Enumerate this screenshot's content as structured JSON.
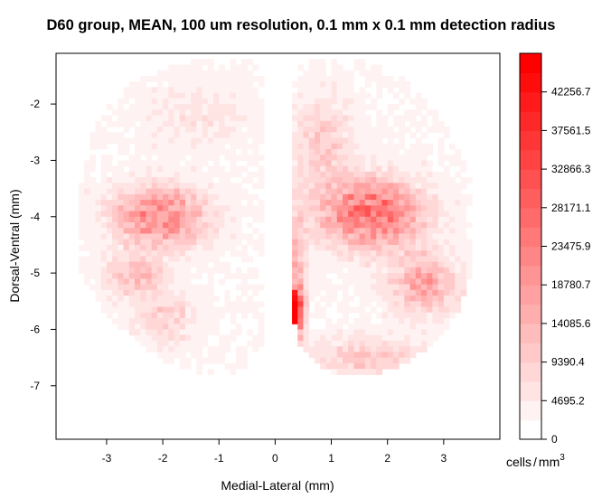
{
  "chart_data": {
    "type": "heatmap",
    "title": "D60 group, MEAN, 100 um resolution, 0.1 mm x 0.1 mm detection radius",
    "xlabel": "Medial-Lateral (mm)",
    "ylabel": "Dorsal-Ventral (mm)",
    "xlim": [
      -3.9,
      4.0
    ],
    "ylim": [
      -7.95,
      -1.1
    ],
    "x_ticks": [
      -3,
      -2,
      -1,
      0,
      1,
      2,
      3
    ],
    "x_tick_labels": [
      "-3",
      "-2",
      "-1",
      "0",
      "1",
      "2",
      "3"
    ],
    "y_ticks": [
      -2,
      -3,
      -4,
      -5,
      -6,
      -7
    ],
    "y_tick_labels": [
      "-2",
      "-3",
      "-4",
      "-5",
      "-6",
      "-7"
    ],
    "grid_step_mm": 0.1,
    "colorscale": {
      "label_prefix": "cells",
      "label_unit": "mm",
      "label_exponent": "3",
      "min": 0,
      "max": 46952,
      "low_color": "#ffffff",
      "high_color": "#ff0000",
      "levels": 20,
      "ticks": [
        0,
        4695.2,
        9390.4,
        14085.6,
        18780.7,
        23475.9,
        28171.1,
        32866.3,
        37561.5,
        42256.7
      ],
      "tick_labels": [
        "0",
        "4695.2",
        "9390.4",
        "14085.6",
        "18780.7",
        "23475.9",
        "28171.1",
        "32866.3",
        "37561.5",
        "42256.7"
      ]
    },
    "regions": {
      "section_outline_left": {
        "top": [
          [
            -3.5,
            -3.2
          ],
          [
            -3.3,
            -2.6
          ],
          [
            -3.0,
            -2.1
          ],
          [
            -2.6,
            -1.65
          ],
          [
            -2.1,
            -1.4
          ],
          [
            -1.5,
            -1.25
          ],
          [
            -0.9,
            -1.15
          ],
          [
            -0.4,
            -1.2
          ],
          [
            -0.15,
            -1.4
          ]
        ],
        "bottom": [
          [
            -3.5,
            -3.2
          ],
          [
            -3.65,
            -4.1
          ],
          [
            -3.5,
            -4.9
          ],
          [
            -3.1,
            -5.6
          ],
          [
            -2.7,
            -6.0
          ],
          [
            -2.3,
            -6.35
          ],
          [
            -1.8,
            -6.65
          ],
          [
            -1.2,
            -6.85
          ],
          [
            -0.6,
            -6.75
          ],
          [
            -0.25,
            -6.3
          ],
          [
            -0.15,
            -5.9
          ]
        ]
      },
      "section_outline_right": {
        "top": [
          [
            0.3,
            -1.4
          ],
          [
            0.7,
            -1.2
          ],
          [
            1.3,
            -1.15
          ],
          [
            2.0,
            -1.35
          ],
          [
            2.5,
            -1.7
          ],
          [
            3.0,
            -2.3
          ],
          [
            3.3,
            -2.9
          ],
          [
            3.55,
            -3.5
          ]
        ],
        "bottom": [
          [
            0.3,
            -5.5
          ],
          [
            0.4,
            -6.2
          ],
          [
            0.7,
            -6.6
          ],
          [
            1.2,
            -6.85
          ],
          [
            1.8,
            -6.8
          ],
          [
            2.4,
            -6.55
          ],
          [
            2.9,
            -6.2
          ],
          [
            3.3,
            -5.6
          ],
          [
            3.5,
            -4.9
          ],
          [
            3.6,
            -4.2
          ],
          [
            3.55,
            -3.5
          ]
        ]
      },
      "midline_gap": {
        "x_from": -0.08,
        "x_to": 0.22,
        "y_from": -1.15,
        "y_to": -6.0
      },
      "basal_density": 1600,
      "hotspots": [
        {
          "label": "left mid-lateral cluster",
          "x": -2.05,
          "y": -4.0,
          "sx": 0.55,
          "sy": 0.35,
          "peak": 21000
        },
        {
          "label": "left ventral band",
          "x": -2.5,
          "y": -5.05,
          "sx": 0.35,
          "sy": 0.25,
          "peak": 11000
        },
        {
          "label": "left ventromedial band",
          "x": -1.95,
          "y": -5.8,
          "sx": 0.35,
          "sy": 0.3,
          "peak": 7500
        },
        {
          "label": "left dorsal area",
          "x": -1.4,
          "y": -2.2,
          "sx": 0.6,
          "sy": 0.4,
          "peak": 3500
        },
        {
          "label": "right mid-lateral cluster",
          "x": 1.7,
          "y": -3.95,
          "sx": 0.6,
          "sy": 0.4,
          "peak": 27000
        },
        {
          "label": "right dorsal area",
          "x": 0.85,
          "y": -2.7,
          "sx": 0.35,
          "sy": 0.5,
          "peak": 8500
        },
        {
          "label": "right ventral band",
          "x": 2.65,
          "y": -5.2,
          "sx": 0.4,
          "sy": 0.35,
          "peak": 15000
        },
        {
          "label": "right ventromedial band",
          "x": 1.6,
          "y": -6.5,
          "sx": 0.7,
          "sy": 0.22,
          "peak": 9000
        },
        {
          "label": "right medial wall",
          "x": 0.35,
          "y": -5.7,
          "sx": 0.09,
          "sy": 0.3,
          "peak": 47000
        },
        {
          "label": "right medial column",
          "x": 0.4,
          "y": -4.8,
          "sx": 0.1,
          "sy": 0.7,
          "peak": 11000
        }
      ]
    }
  }
}
